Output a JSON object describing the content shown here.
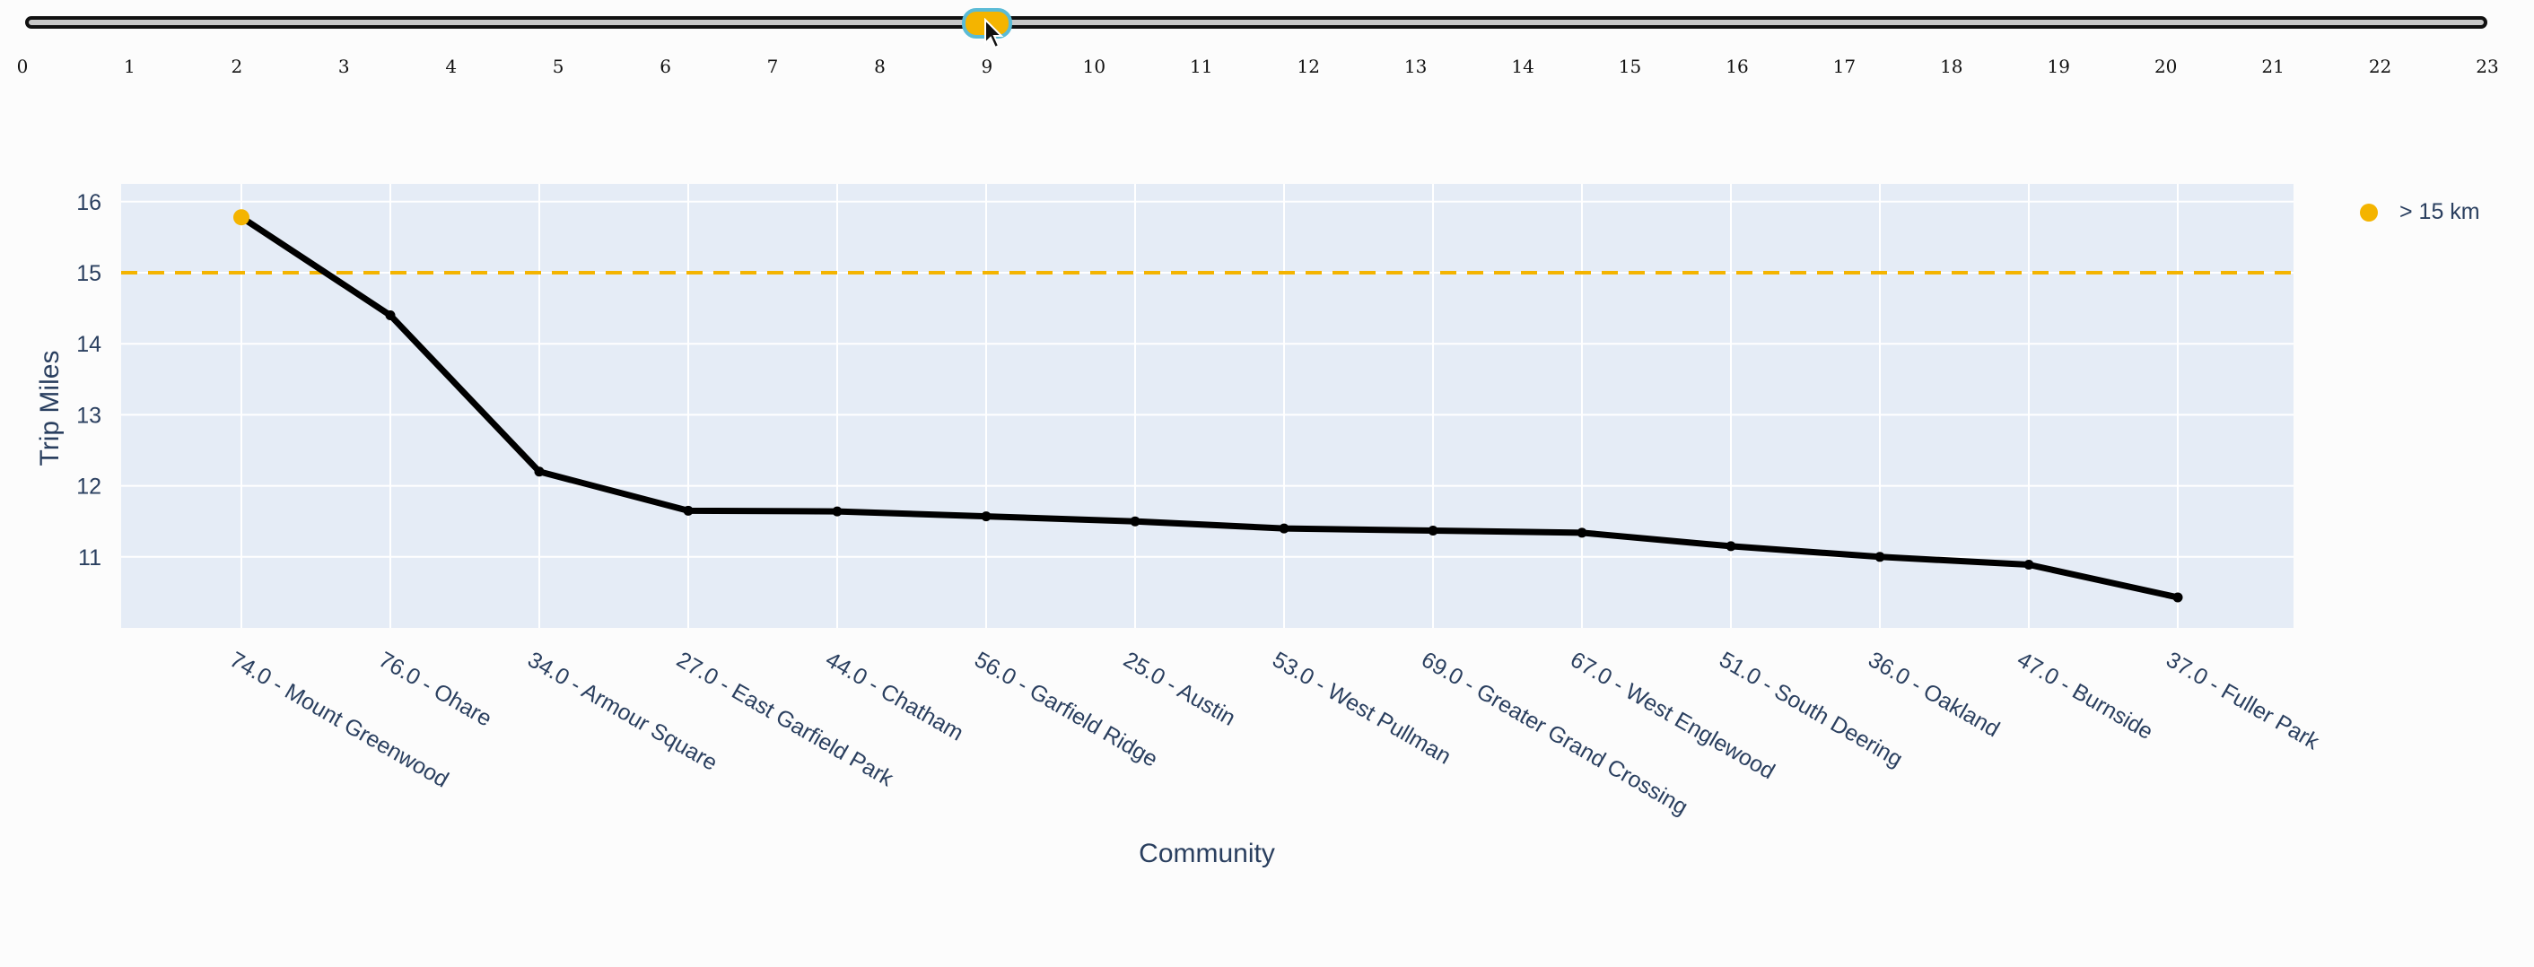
{
  "slider": {
    "ticks": [
      "0",
      "1",
      "2",
      "3",
      "4",
      "5",
      "6",
      "7",
      "8",
      "9",
      "10",
      "11",
      "12",
      "13",
      "14",
      "15",
      "16",
      "17",
      "18",
      "19",
      "20",
      "21",
      "22",
      "23"
    ],
    "value": 9,
    "min": 0,
    "max": 23
  },
  "chart_data": {
    "type": "line",
    "title": "",
    "xlabel": "Community",
    "ylabel": "Trip Miles",
    "categories": [
      "74.0 - Mount Greenwood",
      "76.0 - Ohare",
      "34.0 - Armour Square",
      "27.0 - East Garfield Park",
      "44.0 - Chatham",
      "56.0 - Garfield Ridge",
      "25.0 - Austin",
      "53.0 - West Pullman",
      "69.0 - Greater Grand Crossing",
      "67.0 - West Englewood",
      "51.0 - South Deering",
      "36.0 - Oakland",
      "47.0 - Burnside",
      "37.0 - Fuller Park"
    ],
    "values": [
      15.78,
      14.4,
      12.2,
      11.65,
      11.64,
      11.57,
      11.5,
      11.4,
      11.37,
      11.34,
      11.15,
      11.0,
      10.89,
      10.43
    ],
    "threshold": 15,
    "ylim": [
      10.0,
      16.25
    ],
    "yticks": [
      11,
      12,
      13,
      14,
      15,
      16
    ],
    "grid": true,
    "legend": {
      "position": "top-right",
      "entries": [
        {
          "name": "> 15 km",
          "color": "#f4b400"
        }
      ]
    },
    "colors": {
      "line": "#000000",
      "highlight": "#f4b400",
      "threshold": "#f4b400",
      "plot_bg": "#e5ecf6"
    }
  }
}
